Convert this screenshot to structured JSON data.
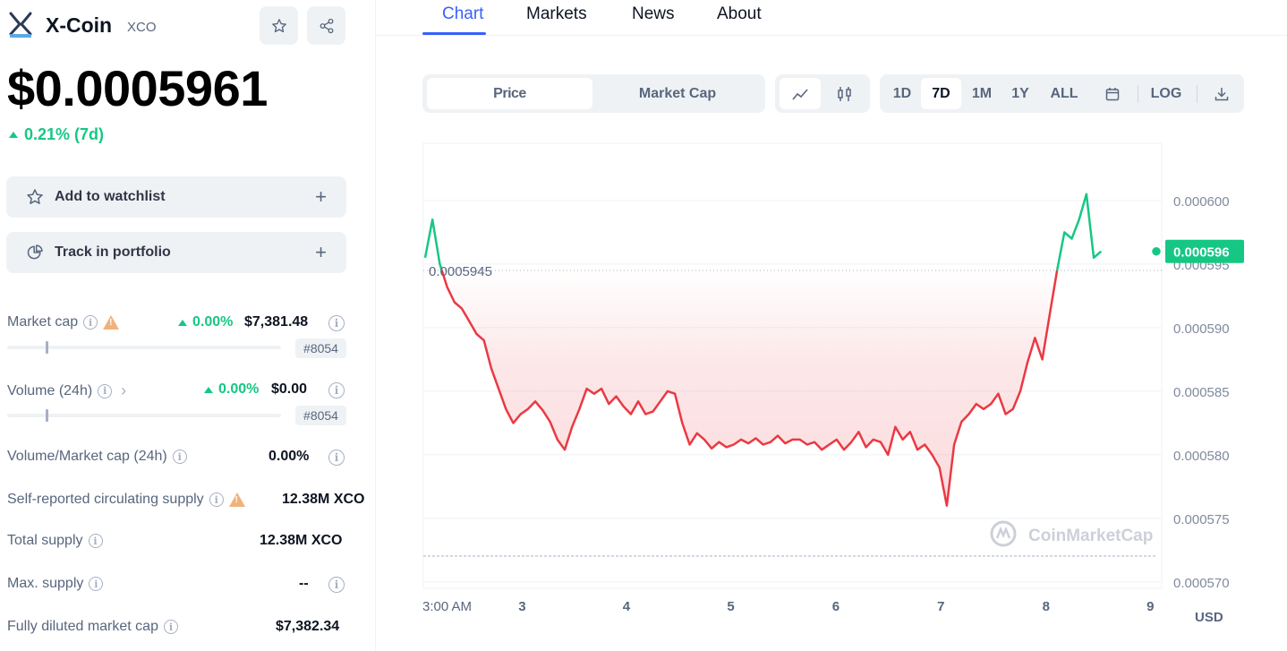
{
  "coin": {
    "name": "X-Coin",
    "symbol": "XCO",
    "price": "$0.0005961",
    "change": "0.21% (7d)"
  },
  "actions": {
    "watchlist": "Add to watchlist",
    "portfolio": "Track in portfolio"
  },
  "stats": {
    "market_cap": {
      "label": "Market cap",
      "pct": "0.00%",
      "value": "$7,381.48",
      "rank": "#8054",
      "rank_position": 0.14
    },
    "volume": {
      "label": "Volume (24h)",
      "pct": "0.00%",
      "value": "$0.00",
      "rank": "#8054",
      "rank_position": 0.14
    },
    "vol_mcap": {
      "label": "Volume/Market cap (24h)",
      "value": "0.00%"
    },
    "circulating": {
      "label": "Self-reported circulating supply",
      "value": "12.38M XCO"
    },
    "total_supply": {
      "label": "Total supply",
      "value": "12.38M XCO"
    },
    "max_supply": {
      "label": "Max. supply",
      "value": "--"
    },
    "fdmc": {
      "label": "Fully diluted market cap",
      "value": "$7,382.34"
    }
  },
  "tabs": [
    "Chart",
    "Markets",
    "News",
    "About"
  ],
  "chart_controls": {
    "metric": [
      "Price",
      "Market Cap"
    ],
    "ranges": [
      "1D",
      "7D",
      "1M",
      "1Y",
      "ALL"
    ],
    "selected_range": "7D",
    "log_label": "LOG"
  },
  "colors": {
    "up": "#16c784",
    "down": "#ea3943",
    "accent": "#3861fb"
  },
  "chart_data": {
    "type": "line",
    "x_tick_labels": [
      "3:00 AM",
      "3",
      "4",
      "5",
      "6",
      "7",
      "8",
      "9"
    ],
    "y_tick_labels": [
      "0.000600",
      "0.000595",
      "0.000590",
      "0.000585",
      "0.000580",
      "0.000575",
      "0.000570"
    ],
    "ylim": [
      0.0005695,
      0.0006045
    ],
    "currency_label": "USD",
    "reference_price": 0.0005945,
    "reference_label": "0.0005945",
    "current_price": 0.000596,
    "current_label": "0.000596",
    "watermark": "CoinMarketCap",
    "grid": true,
    "series": [
      {
        "t": 0.0,
        "v": 0.0005955
      },
      {
        "t": 0.01,
        "v": 0.0005985
      },
      {
        "t": 0.02,
        "v": 0.000595
      },
      {
        "t": 0.03,
        "v": 0.0005932
      },
      {
        "t": 0.04,
        "v": 0.000592
      },
      {
        "t": 0.05,
        "v": 0.0005915
      },
      {
        "t": 0.06,
        "v": 0.0005905
      },
      {
        "t": 0.07,
        "v": 0.0005895
      },
      {
        "t": 0.08,
        "v": 0.000589
      },
      {
        "t": 0.09,
        "v": 0.0005868
      },
      {
        "t": 0.1,
        "v": 0.0005852
      },
      {
        "t": 0.11,
        "v": 0.0005836
      },
      {
        "t": 0.12,
        "v": 0.0005825
      },
      {
        "t": 0.13,
        "v": 0.0005832
      },
      {
        "t": 0.14,
        "v": 0.0005836
      },
      {
        "t": 0.15,
        "v": 0.0005842
      },
      {
        "t": 0.16,
        "v": 0.0005835
      },
      {
        "t": 0.17,
        "v": 0.0005826
      },
      {
        "t": 0.18,
        "v": 0.0005812
      },
      {
        "t": 0.19,
        "v": 0.0005804
      },
      {
        "t": 0.2,
        "v": 0.0005822
      },
      {
        "t": 0.21,
        "v": 0.0005836
      },
      {
        "t": 0.22,
        "v": 0.0005852
      },
      {
        "t": 0.23,
        "v": 0.0005848
      },
      {
        "t": 0.24,
        "v": 0.0005852
      },
      {
        "t": 0.25,
        "v": 0.000584
      },
      {
        "t": 0.26,
        "v": 0.0005846
      },
      {
        "t": 0.27,
        "v": 0.0005838
      },
      {
        "t": 0.28,
        "v": 0.0005832
      },
      {
        "t": 0.29,
        "v": 0.0005842
      },
      {
        "t": 0.3,
        "v": 0.0005832
      },
      {
        "t": 0.31,
        "v": 0.0005834
      },
      {
        "t": 0.32,
        "v": 0.0005842
      },
      {
        "t": 0.33,
        "v": 0.000585
      },
      {
        "t": 0.34,
        "v": 0.0005848
      },
      {
        "t": 0.35,
        "v": 0.0005825
      },
      {
        "t": 0.36,
        "v": 0.0005808
      },
      {
        "t": 0.37,
        "v": 0.0005817
      },
      {
        "t": 0.38,
        "v": 0.0005812
      },
      {
        "t": 0.39,
        "v": 0.0005805
      },
      {
        "t": 0.4,
        "v": 0.000581
      },
      {
        "t": 0.41,
        "v": 0.0005806
      },
      {
        "t": 0.42,
        "v": 0.0005808
      },
      {
        "t": 0.43,
        "v": 0.0005812
      },
      {
        "t": 0.44,
        "v": 0.0005809
      },
      {
        "t": 0.45,
        "v": 0.0005813
      },
      {
        "t": 0.46,
        "v": 0.0005808
      },
      {
        "t": 0.47,
        "v": 0.000581
      },
      {
        "t": 0.48,
        "v": 0.0005815
      },
      {
        "t": 0.49,
        "v": 0.0005809
      },
      {
        "t": 0.5,
        "v": 0.0005812
      },
      {
        "t": 0.51,
        "v": 0.0005812
      },
      {
        "t": 0.52,
        "v": 0.0005808
      },
      {
        "t": 0.53,
        "v": 0.000581
      },
      {
        "t": 0.54,
        "v": 0.0005804
      },
      {
        "t": 0.55,
        "v": 0.0005808
      },
      {
        "t": 0.56,
        "v": 0.0005812
      },
      {
        "t": 0.57,
        "v": 0.0005804
      },
      {
        "t": 0.58,
        "v": 0.000581
      },
      {
        "t": 0.59,
        "v": 0.0005818
      },
      {
        "t": 0.6,
        "v": 0.0005806
      },
      {
        "t": 0.61,
        "v": 0.0005812
      },
      {
        "t": 0.62,
        "v": 0.000581
      },
      {
        "t": 0.63,
        "v": 0.00058
      },
      {
        "t": 0.64,
        "v": 0.0005822
      },
      {
        "t": 0.65,
        "v": 0.0005812
      },
      {
        "t": 0.66,
        "v": 0.0005818
      },
      {
        "t": 0.67,
        "v": 0.0005804
      },
      {
        "t": 0.68,
        "v": 0.0005808
      },
      {
        "t": 0.69,
        "v": 0.00058
      },
      {
        "t": 0.7,
        "v": 0.000579
      },
      {
        "t": 0.71,
        "v": 0.000576
      },
      {
        "t": 0.72,
        "v": 0.0005808
      },
      {
        "t": 0.73,
        "v": 0.0005826
      },
      {
        "t": 0.74,
        "v": 0.0005832
      },
      {
        "t": 0.75,
        "v": 0.000584
      },
      {
        "t": 0.76,
        "v": 0.0005836
      },
      {
        "t": 0.77,
        "v": 0.000584
      },
      {
        "t": 0.78,
        "v": 0.0005848
      },
      {
        "t": 0.79,
        "v": 0.0005832
      },
      {
        "t": 0.8,
        "v": 0.0005836
      },
      {
        "t": 0.81,
        "v": 0.000585
      },
      {
        "t": 0.82,
        "v": 0.0005873
      },
      {
        "t": 0.83,
        "v": 0.0005892
      },
      {
        "t": 0.84,
        "v": 0.0005875
      },
      {
        "t": 0.85,
        "v": 0.000591
      },
      {
        "t": 0.86,
        "v": 0.0005945
      },
      {
        "t": 0.87,
        "v": 0.0005975
      },
      {
        "t": 0.88,
        "v": 0.000597
      },
      {
        "t": 0.89,
        "v": 0.0005985
      },
      {
        "t": 0.9,
        "v": 0.0006005
      },
      {
        "t": 0.91,
        "v": 0.0005955
      },
      {
        "t": 0.92,
        "v": 0.000596
      }
    ]
  }
}
